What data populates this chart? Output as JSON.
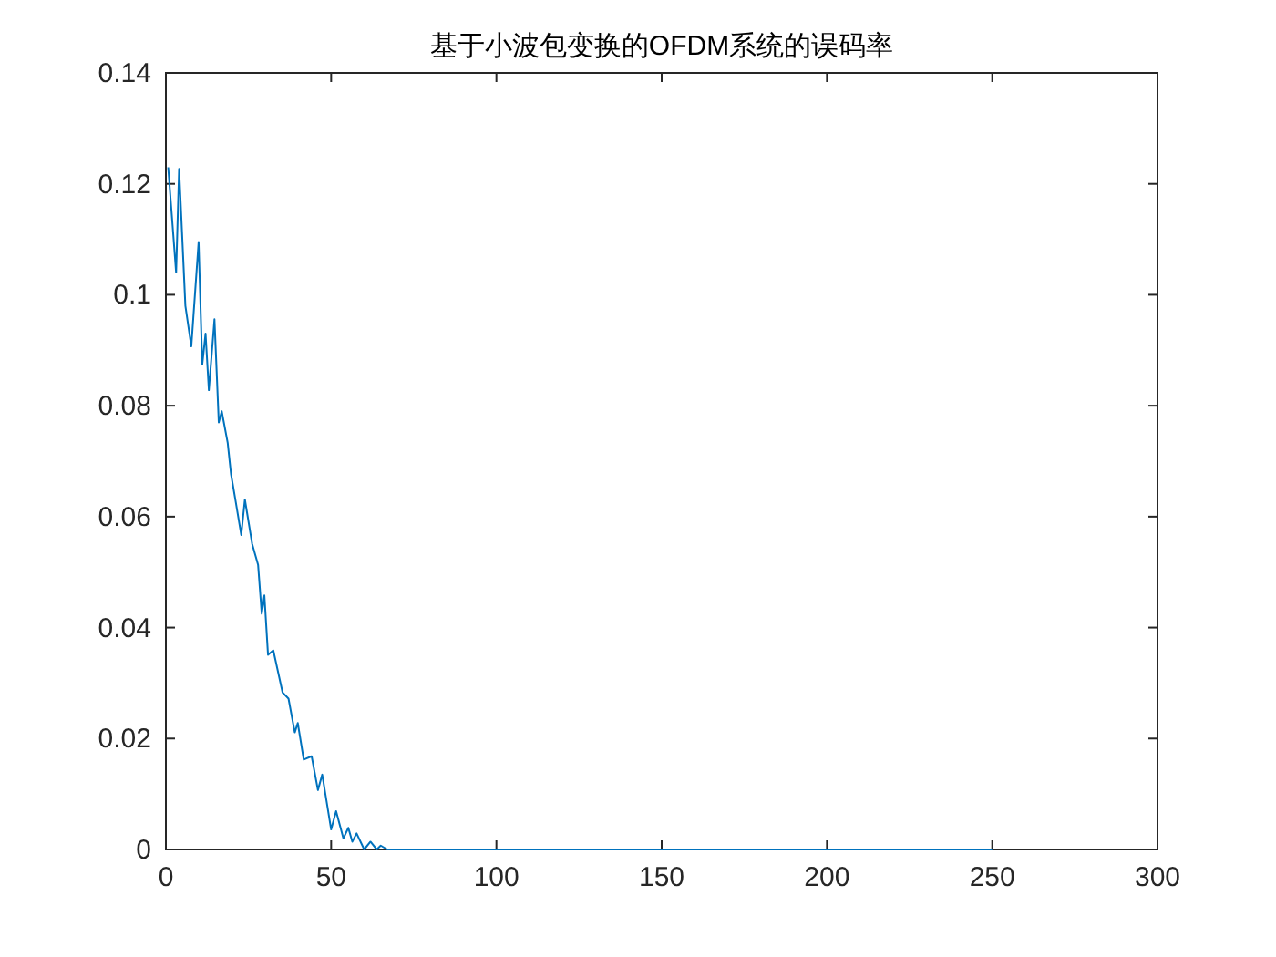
{
  "chart_data": {
    "type": "line",
    "title": "基于小波包变换的OFDM系统的误码率",
    "series": [
      {
        "color": "#0072bd",
        "x": [
          0.7,
          3.1,
          4,
          5.9,
          7.7,
          9.9,
          11,
          12,
          13,
          14.7,
          16,
          16.9,
          18.7,
          19.7,
          21.1,
          22.8,
          23.9,
          26.1,
          27.9,
          29,
          29.8,
          30.9,
          32.5,
          35.3,
          37.1,
          39,
          39.9,
          41.7,
          44.1,
          46,
          47.3,
          50,
          51.5,
          53.7,
          55.2,
          56.4,
          57.7,
          60,
          61.9,
          63.8,
          65,
          67,
          100,
          150,
          200,
          250
        ],
        "values": [
          0.123,
          0.104,
          0.1227,
          0.098,
          0.0907,
          0.1095,
          0.0874,
          0.093,
          0.0828,
          0.0956,
          0.077,
          0.079,
          0.0733,
          0.0677,
          0.0628,
          0.0567,
          0.0631,
          0.0551,
          0.0513,
          0.0425,
          0.0458,
          0.0351,
          0.0359,
          0.0283,
          0.0272,
          0.0211,
          0.0228,
          0.0162,
          0.0168,
          0.0107,
          0.0135,
          0.0036,
          0.0069,
          0.002,
          0.0039,
          0.0014,
          0.0029,
          0,
          0.0014,
          0,
          0.0007,
          0,
          0,
          0,
          0,
          0
        ]
      }
    ],
    "xlim": [
      0,
      300
    ],
    "xticks": [
      0,
      50,
      100,
      150,
      200,
      250,
      300
    ],
    "ylim": [
      0,
      0.14
    ],
    "yticks": [
      0,
      0.02,
      0.04,
      0.06,
      0.08,
      0.1,
      0.12,
      0.14
    ],
    "grid": false
  }
}
